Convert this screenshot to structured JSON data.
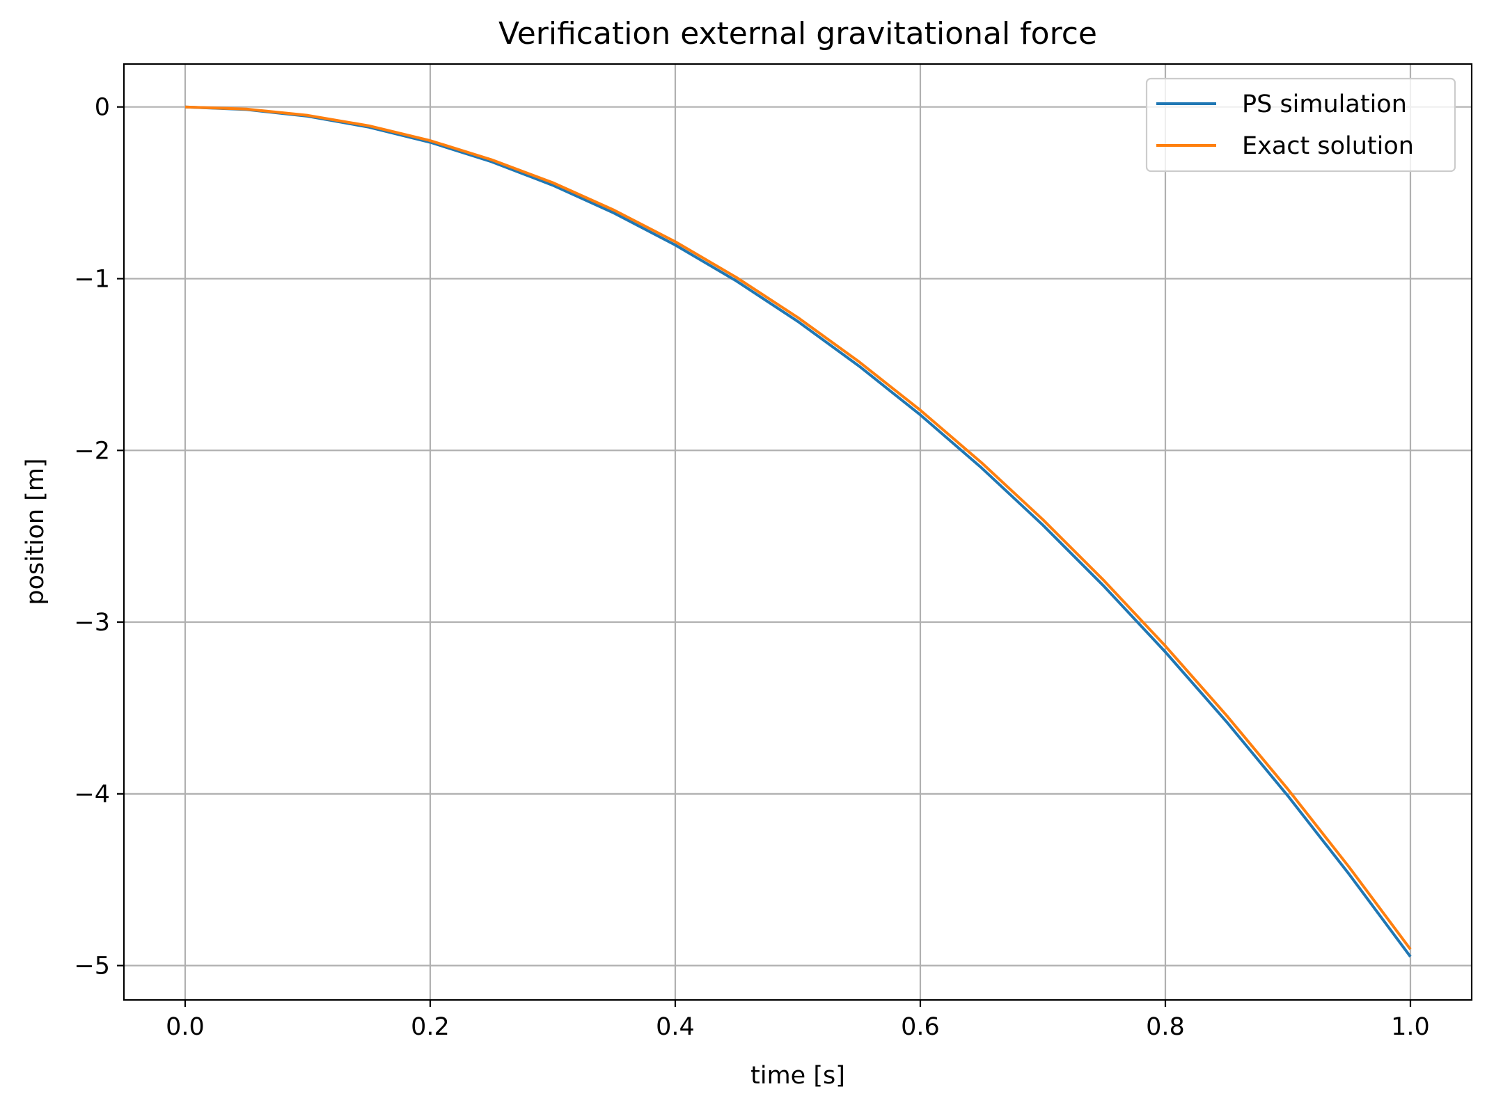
{
  "chart_data": {
    "type": "line",
    "title": "Verification external gravitational force",
    "xlabel": "time [s]",
    "ylabel": "position [m]",
    "xlim": [
      -0.05,
      1.05
    ],
    "ylim": [
      -5.2,
      0.25
    ],
    "xticks": [
      0.0,
      0.2,
      0.4,
      0.6,
      0.8,
      1.0
    ],
    "xtick_labels": [
      "0.0",
      "0.2",
      "0.4",
      "0.6",
      "0.8",
      "1.0"
    ],
    "yticks": [
      0,
      -1,
      -2,
      -3,
      -4,
      -5
    ],
    "ytick_labels": [
      "0",
      "−1",
      "−2",
      "−3",
      "−4",
      "−5"
    ],
    "grid": true,
    "legend_position": "top-right",
    "series": [
      {
        "name": "PS simulation",
        "color": "#1f77b4",
        "x": [
          0.0,
          0.05,
          0.1,
          0.15,
          0.2,
          0.25,
          0.3,
          0.35,
          0.4,
          0.45,
          0.5,
          0.55,
          0.6,
          0.65,
          0.7,
          0.75,
          0.8,
          0.85,
          0.9,
          0.95,
          1.0
        ],
        "y": [
          0.0,
          -0.015,
          -0.054,
          -0.118,
          -0.206,
          -0.319,
          -0.456,
          -0.618,
          -0.804,
          -1.014,
          -1.249,
          -1.509,
          -1.793,
          -2.102,
          -2.435,
          -2.792,
          -3.174,
          -3.581,
          -4.012,
          -4.468,
          -4.948
        ]
      },
      {
        "name": "Exact solution",
        "color": "#ff7f0e",
        "x": [
          0.0,
          0.05,
          0.1,
          0.15,
          0.2,
          0.25,
          0.3,
          0.35,
          0.4,
          0.45,
          0.5,
          0.55,
          0.6,
          0.65,
          0.7,
          0.75,
          0.8,
          0.85,
          0.9,
          0.95,
          1.0
        ],
        "y": [
          0.0,
          -0.012,
          -0.049,
          -0.11,
          -0.196,
          -0.307,
          -0.441,
          -0.601,
          -0.785,
          -0.993,
          -1.226,
          -1.484,
          -1.766,
          -2.072,
          -2.403,
          -2.759,
          -3.139,
          -3.544,
          -3.973,
          -4.427,
          -4.905
        ]
      }
    ]
  }
}
